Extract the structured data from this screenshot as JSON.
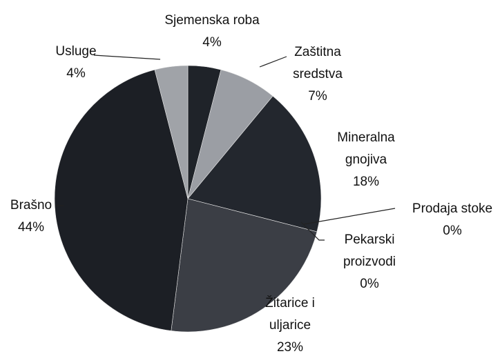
{
  "chart_data": {
    "type": "pie",
    "categories": [
      "Sjemenska roba",
      "Zaštitna sredstva",
      "Mineralna gnojiva",
      "Prodaja stoke",
      "Pekarski proizvodi",
      "Žitarice i uljarice",
      "Brašno",
      "Usluge"
    ],
    "values": [
      4,
      7,
      18,
      0,
      0,
      23,
      44,
      4
    ],
    "value_labels": [
      "4%",
      "7%",
      "18%",
      "0%",
      "0%",
      "23%",
      "44%",
      "4%"
    ],
    "colors": [
      "#1f2329",
      "#9b9ea4",
      "#23272e",
      "#2a2e35",
      "#2a2e35",
      "#3b3e45",
      "#1c1f25",
      "#a0a3a8"
    ]
  }
}
